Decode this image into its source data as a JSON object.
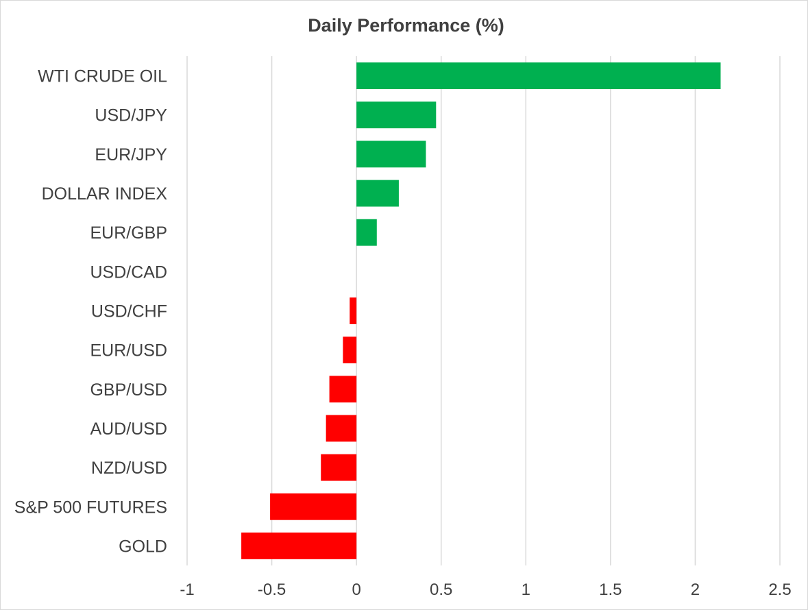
{
  "chart_data": {
    "type": "bar",
    "orientation": "horizontal",
    "title": "Daily Performance (%)",
    "xlabel": "",
    "ylabel": "",
    "categories": [
      "WTI CRUDE OIL",
      "USD/JPY",
      "EUR/JPY",
      "DOLLAR INDEX",
      "EUR/GBP",
      "USD/CAD",
      "USD/CHF",
      "EUR/USD",
      "GBP/USD",
      "AUD/USD",
      "NZD/USD",
      "S&P 500 FUTURES",
      "GOLD"
    ],
    "values": [
      2.15,
      0.47,
      0.41,
      0.25,
      0.12,
      0.0,
      -0.04,
      -0.08,
      -0.16,
      -0.18,
      -0.21,
      -0.51,
      -0.68
    ],
    "xlim": [
      -1,
      2.5
    ],
    "xticks": [
      "-1",
      "-0.5",
      "0",
      "0.5",
      "1",
      "1.5",
      "2",
      "2.5"
    ],
    "xtick_values": [
      -1,
      -0.5,
      0,
      0.5,
      1,
      1.5,
      2,
      2.5
    ],
    "grid": "vertical",
    "legend": "none",
    "colors": {
      "positive": "#00b050",
      "negative": "#ff0000",
      "grid": "#d9d9d9",
      "text": "#404040"
    }
  }
}
